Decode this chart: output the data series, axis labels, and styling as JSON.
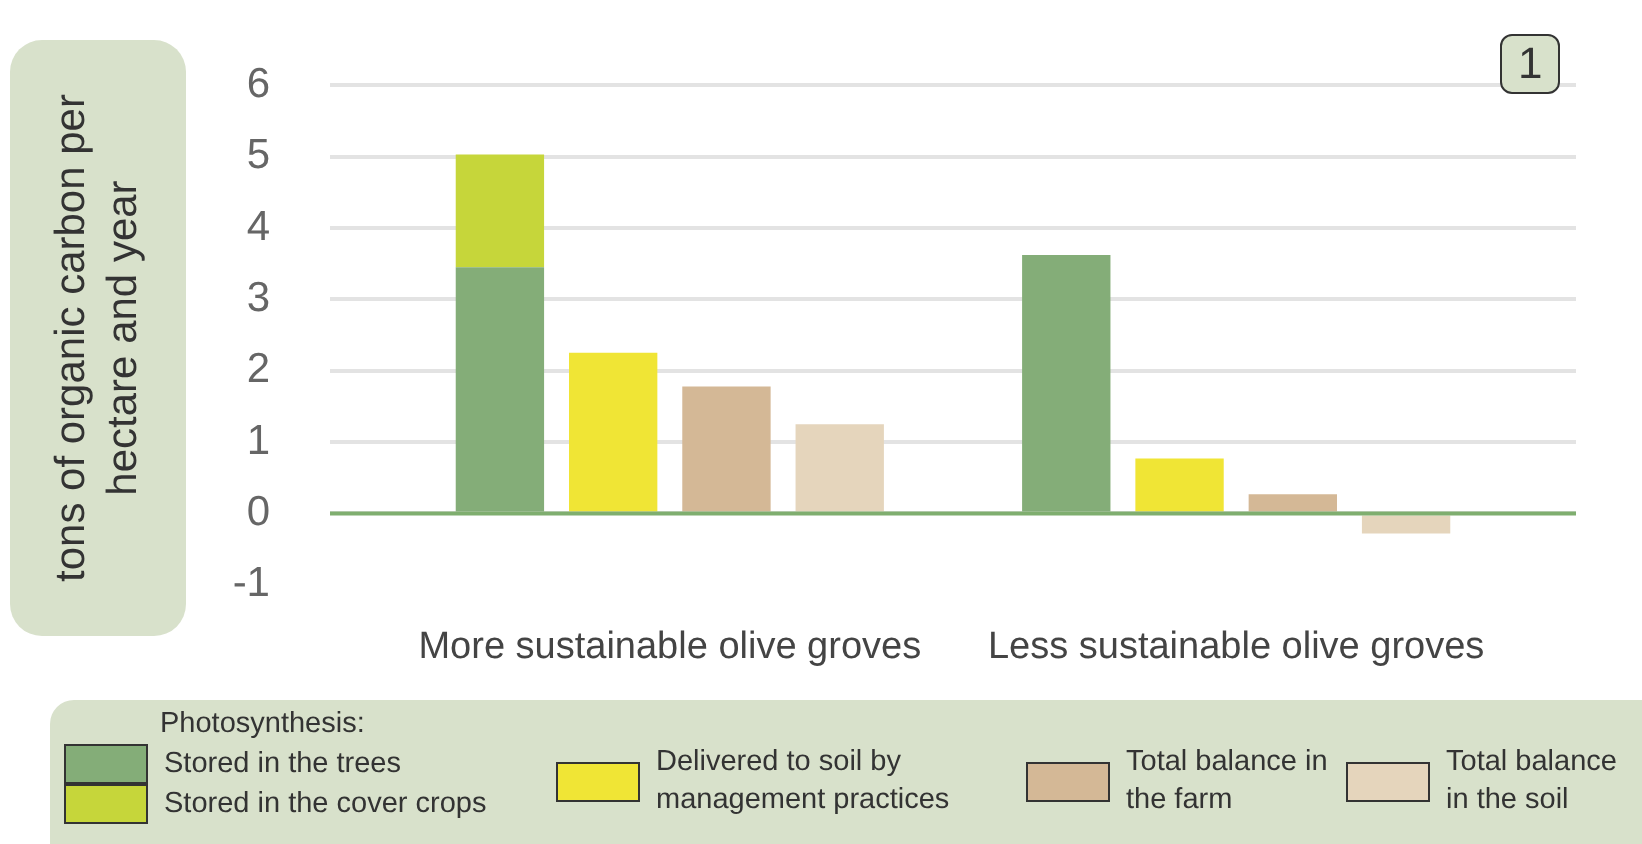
{
  "chart_data": {
    "type": "bar",
    "stacked": true,
    "ylabel": "tons of organic carbon per hectare and year",
    "legend_title": "Photosynthesis:",
    "annotations": [
      "1",
      "More sustainable olive groves",
      "Less sustainable olive groves"
    ],
    "categories": [
      null,
      null,
      null,
      null,
      null,
      null,
      null,
      null,
      null,
      null,
      null
    ],
    "series": [
      {
        "name": "Stored in the trees",
        "color": "#84ad78",
        "values": [
          null,
          3.45,
          null,
          null,
          null,
          null,
          3.62,
          null,
          null,
          null,
          null
        ]
      },
      {
        "name": "Stored in the cover crops",
        "color": "#c6d63a",
        "values": [
          null,
          1.58,
          null,
          null,
          null,
          null,
          null,
          null,
          null,
          null,
          null
        ]
      },
      {
        "name": "Delivered to soil by management practices",
        "color": "#f0e535",
        "values": [
          null,
          null,
          2.25,
          null,
          null,
          null,
          null,
          0.77,
          null,
          null,
          null
        ]
      },
      {
        "name": "Total balance in the farm",
        "color": "#d4b896",
        "values": [
          null,
          null,
          null,
          1.78,
          null,
          null,
          null,
          null,
          0.27,
          null,
          null
        ]
      },
      {
        "name": "Total balance in the soil",
        "color": "#e5d5bc",
        "values": [
          null,
          null,
          null,
          null,
          1.25,
          null,
          null,
          null,
          null,
          -0.28,
          null
        ]
      }
    ],
    "ylim": [
      -1,
      6
    ],
    "yticks": [
      -1,
      0,
      1,
      2,
      3,
      4,
      5,
      6
    ],
    "grid": "y",
    "legend": "bottom",
    "ref_lines": [
      {
        "axis": "y",
        "value": 0,
        "color": "#7fae6f"
      }
    ]
  }
}
